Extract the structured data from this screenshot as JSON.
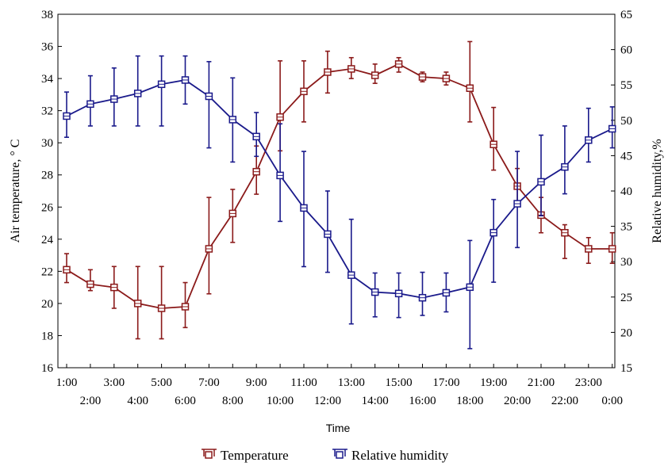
{
  "chart_data": {
    "type": "line",
    "xlabel": "Time",
    "ylabel_left": "Air temperature, ° C",
    "ylabel_right": "Relative humidity,%",
    "ylim_left": [
      16,
      38
    ],
    "ylim_right": [
      15,
      65
    ],
    "yticks_left": [
      "16",
      "18",
      "20",
      "22",
      "24",
      "26",
      "28",
      "30",
      "32",
      "34",
      "36",
      "38"
    ],
    "yticks_right": [
      "15",
      "20",
      "25",
      "30",
      "35",
      "40",
      "45",
      "50",
      "55",
      "60",
      "65"
    ],
    "categories": [
      "1:00",
      "2:00",
      "3:00",
      "4:00",
      "5:00",
      "6:00",
      "7:00",
      "8:00",
      "9:00",
      "10:00",
      "11:00",
      "12:00",
      "13:00",
      "14:00",
      "15:00",
      "16:00",
      "17:00",
      "18:00",
      "19:00",
      "20:00",
      "21:00",
      "22:00",
      "23:00",
      "0:00"
    ],
    "grid": false,
    "legend_position": "bottom-center",
    "series": [
      {
        "name": "Temperature",
        "axis": "left",
        "color": "#8b1a1a",
        "marker": "square",
        "values": [
          22.1,
          21.2,
          21.0,
          20.0,
          19.7,
          19.8,
          23.4,
          25.6,
          28.2,
          31.6,
          33.2,
          34.4,
          34.6,
          34.2,
          34.9,
          34.1,
          34.0,
          33.4,
          29.9,
          27.3,
          25.5,
          24.4,
          23.4,
          23.4
        ],
        "error_low": [
          21.3,
          20.8,
          19.7,
          17.8,
          17.8,
          18.5,
          20.6,
          23.8,
          26.8,
          29.5,
          31.3,
          33.1,
          34.0,
          33.7,
          34.4,
          33.8,
          33.6,
          31.3,
          28.3,
          26.2,
          24.4,
          22.8,
          22.5,
          22.5
        ],
        "error_high": [
          23.1,
          22.1,
          22.3,
          22.3,
          22.3,
          21.3,
          26.6,
          27.1,
          29.8,
          35.1,
          35.1,
          35.7,
          35.3,
          34.9,
          35.3,
          34.4,
          34.4,
          36.3,
          32.2,
          28.4,
          26.6,
          24.9,
          24.1,
          24.4
        ]
      },
      {
        "name": "Relative humidity",
        "axis": "right",
        "color": "#1a1a8b",
        "marker": "square",
        "values": [
          50.6,
          52.3,
          53.0,
          53.8,
          55.1,
          55.7,
          53.4,
          50.1,
          47.7,
          42.2,
          37.6,
          33.9,
          28.1,
          25.7,
          25.5,
          24.9,
          25.6,
          26.4,
          34.1,
          38.2,
          41.3,
          43.4,
          47.2,
          48.8
        ],
        "error_low": [
          47.6,
          49.2,
          49.2,
          49.2,
          49.2,
          52.3,
          46.1,
          44.1,
          44.9,
          35.7,
          29.3,
          28.5,
          21.2,
          22.2,
          22.1,
          22.4,
          22.9,
          17.7,
          27.1,
          32.0,
          36.5,
          39.6,
          44.1,
          46.1
        ],
        "error_high": [
          54.0,
          56.3,
          57.4,
          59.1,
          59.1,
          59.1,
          58.3,
          56.0,
          51.1,
          49.5,
          45.6,
          40.0,
          36.0,
          28.4,
          28.4,
          28.5,
          28.4,
          33.0,
          38.8,
          45.6,
          47.9,
          49.2,
          51.7,
          51.9
        ]
      }
    ]
  }
}
